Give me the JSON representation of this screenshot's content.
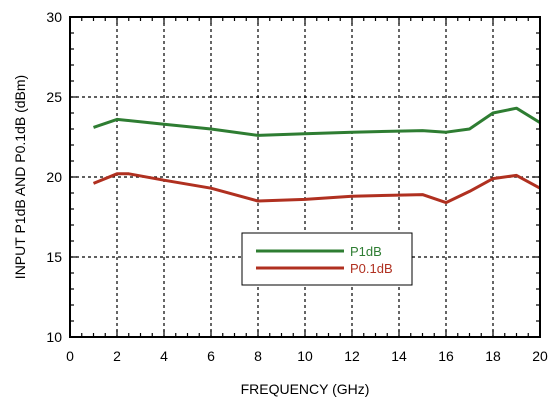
{
  "chart_data": {
    "type": "line",
    "title": "",
    "xlabel": "FREQUENCY (GHz)",
    "ylabel": "INPUT P1dB AND P0.1dB (dBm)",
    "xlim": [
      0,
      20
    ],
    "ylim": [
      10,
      30
    ],
    "xticks": [
      0,
      2,
      4,
      6,
      8,
      10,
      12,
      14,
      16,
      18,
      20
    ],
    "yticks": [
      10,
      15,
      20,
      25,
      30
    ],
    "grid": true,
    "grid_style": "dashed",
    "legend_position": "lower-center",
    "series": [
      {
        "name": "P1dB",
        "color": "#2e7d32",
        "x": [
          1,
          2,
          4,
          6,
          8,
          10,
          12,
          15,
          16,
          17,
          18,
          19,
          20
        ],
        "y": [
          23.1,
          23.6,
          23.3,
          23.0,
          22.6,
          22.7,
          22.8,
          22.9,
          22.8,
          23.0,
          24.0,
          24.3,
          23.4
        ]
      },
      {
        "name": "P0.1dB",
        "color": "#b03020",
        "x": [
          1,
          2,
          2.5,
          4,
          6,
          8,
          10,
          12,
          15,
          16,
          17,
          18,
          19,
          20
        ],
        "y": [
          19.6,
          20.2,
          20.2,
          19.8,
          19.3,
          18.5,
          18.6,
          18.8,
          18.9,
          18.4,
          19.1,
          19.9,
          20.1,
          19.3
        ]
      }
    ]
  }
}
